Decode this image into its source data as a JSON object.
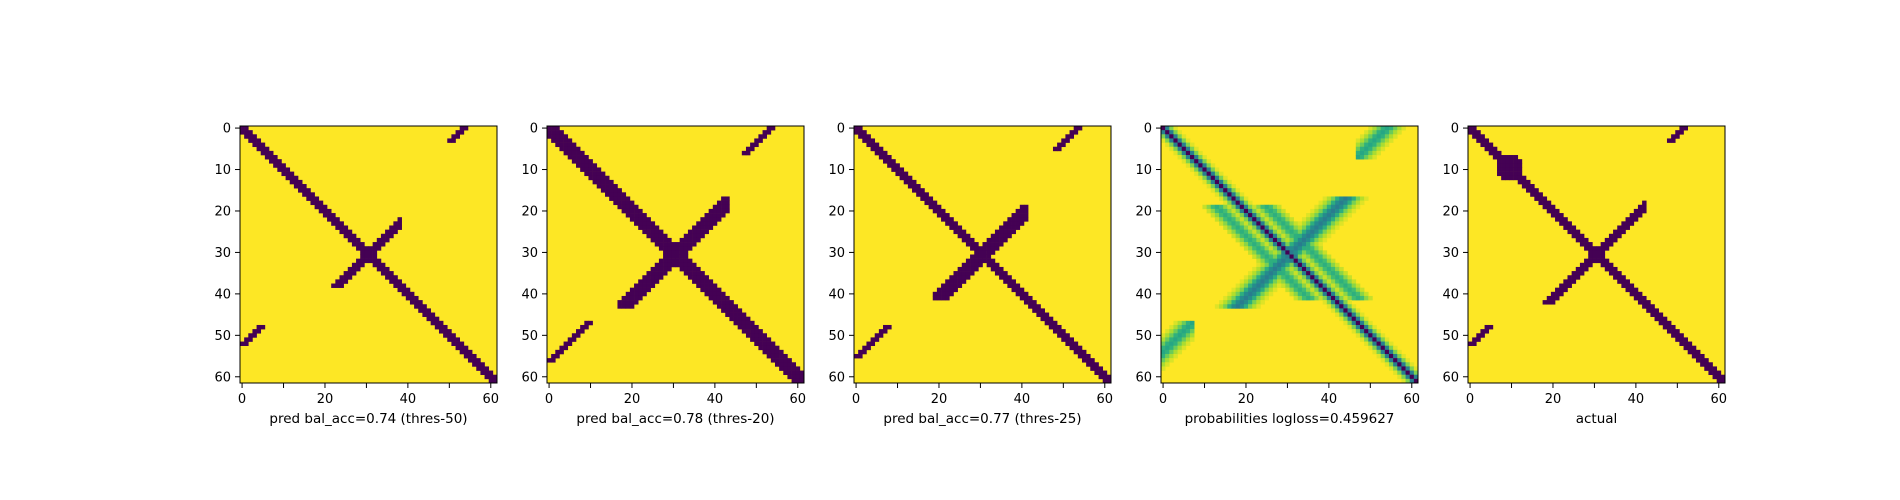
{
  "chart_data": [
    {
      "type": "heatmap",
      "variant": "binary",
      "xlabel": "pred bal_acc=0.74 (thres-50)",
      "xticks": [
        0,
        10,
        20,
        30,
        40,
        50,
        60
      ],
      "yticks": [
        0,
        10,
        20,
        30,
        40,
        50,
        60
      ],
      "xlim": [
        0,
        61
      ],
      "ylim": [
        61,
        0
      ],
      "shown_xticks": [
        "0",
        "20",
        "40",
        "60"
      ],
      "shown_yticks": [
        "0",
        "10",
        "20",
        "30",
        "40",
        "50",
        "60"
      ],
      "grid_size": 62,
      "diag_halfwidth": 1.4,
      "anti_diag_segment": [
        21,
        38
      ],
      "anti_halfwidth": 1.1,
      "corner_blobs": [
        [
          0,
          50,
          3,
          54
        ],
        [
          49,
          0,
          52,
          4
        ]
      ],
      "colormap": "viridis"
    },
    {
      "type": "heatmap",
      "variant": "binary",
      "xlabel": "pred bal_acc=0.78 (thres-20)",
      "xticks": [
        0,
        10,
        20,
        30,
        40,
        50,
        60
      ],
      "yticks": [
        0,
        10,
        20,
        30,
        40,
        50,
        60
      ],
      "xlim": [
        0,
        61
      ],
      "ylim": [
        61,
        0
      ],
      "shown_xticks": [
        "0",
        "20",
        "40",
        "60"
      ],
      "shown_yticks": [
        "0",
        "10",
        "20",
        "30",
        "40",
        "50",
        "60"
      ],
      "grid_size": 62,
      "diag_halfwidth": 2.2,
      "anti_diag_segment": [
        17,
        43
      ],
      "anti_halfwidth": 2.0,
      "corner_blobs": [
        [
          0,
          47,
          6,
          56
        ],
        [
          47,
          0,
          56,
          6
        ]
      ],
      "colormap": "viridis"
    },
    {
      "type": "heatmap",
      "variant": "binary",
      "xlabel": "pred bal_acc=0.77 (thres-25)",
      "xticks": [
        0,
        10,
        20,
        30,
        40,
        50,
        60
      ],
      "yticks": [
        0,
        10,
        20,
        30,
        40,
        50,
        60
      ],
      "xlim": [
        0,
        61
      ],
      "ylim": [
        61,
        0
      ],
      "shown_xticks": [
        "0",
        "20",
        "40",
        "60"
      ],
      "shown_yticks": [
        "0",
        "10",
        "20",
        "30",
        "40",
        "50",
        "60"
      ],
      "grid_size": 62,
      "diag_halfwidth": 1.9,
      "anti_diag_segment": [
        19,
        41
      ],
      "anti_halfwidth": 1.6,
      "corner_blobs": [
        [
          0,
          48,
          5,
          55
        ],
        [
          48,
          0,
          55,
          5
        ]
      ],
      "colormap": "viridis"
    },
    {
      "type": "heatmap",
      "variant": "probability",
      "xlabel": "probabilities logloss=0.459627",
      "xticks": [
        0,
        10,
        20,
        30,
        40,
        50,
        60
      ],
      "yticks": [
        0,
        10,
        20,
        30,
        40,
        50,
        60
      ],
      "xlim": [
        0,
        61
      ],
      "ylim": [
        61,
        0
      ],
      "shown_xticks": [
        "0",
        "20",
        "40",
        "60"
      ],
      "shown_yticks": [
        "0",
        "10",
        "20",
        "30",
        "40",
        "50",
        "60"
      ],
      "grid_size": 62,
      "colormap": "viridis_r"
    },
    {
      "type": "heatmap",
      "variant": "binary",
      "xlabel": "actual",
      "xticks": [
        0,
        10,
        20,
        30,
        40,
        50,
        60
      ],
      "yticks": [
        0,
        10,
        20,
        30,
        40,
        50,
        60
      ],
      "xlim": [
        0,
        61
      ],
      "ylim": [
        61,
        0
      ],
      "shown_xticks": [
        "0",
        "20",
        "40",
        "60"
      ],
      "shown_yticks": [
        "0",
        "10",
        "20",
        "30",
        "40",
        "50",
        "60"
      ],
      "grid_size": 62,
      "diag_halfwidth": 1.3,
      "anti_diag_segment": [
        18,
        42
      ],
      "anti_halfwidth": 1.0,
      "corner_blobs": [
        [
          0,
          48,
          3,
          52
        ],
        [
          48,
          0,
          52,
          3
        ]
      ],
      "extra_blobs": [
        [
          8,
          10
        ],
        [
          10,
          8
        ],
        [
          9,
          11
        ],
        [
          11,
          9
        ]
      ],
      "colormap": "viridis"
    }
  ],
  "colors": {
    "low": "#440154",
    "high": "#fde725",
    "mid_green": "#7ad151",
    "mid_teal": "#22a884",
    "mid_blue": "#2a788e"
  }
}
